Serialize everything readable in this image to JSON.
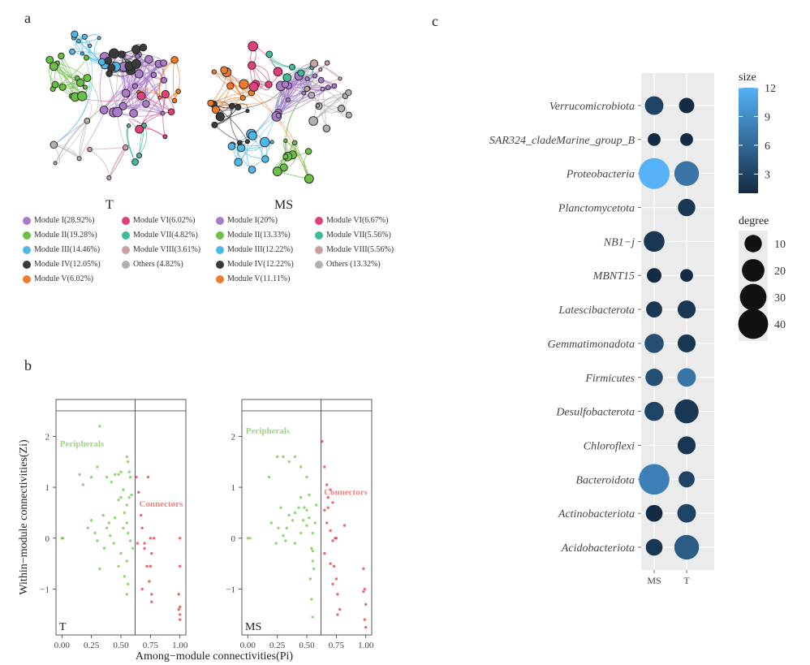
{
  "panels": {
    "a": "a",
    "b": "b",
    "c": "c"
  },
  "network_T": {
    "title": "T",
    "legend": [
      {
        "label": "Module I(28.92%)",
        "color": "#a97bc9"
      },
      {
        "label": "Module II(19.28%)",
        "color": "#6abf45"
      },
      {
        "label": "Module III(14.46%)",
        "color": "#4db8e8"
      },
      {
        "label": "Module IV(12.05%)",
        "color": "#3a3a3a"
      },
      {
        "label": "Module V(6.02%)",
        "color": "#ee7a2a"
      },
      {
        "label": "Module VI(6.02%)",
        "color": "#e0407a"
      },
      {
        "label": "Module VII(4.82%)",
        "color": "#3dbb9a"
      },
      {
        "label": "Module VIII(3.61%)",
        "color": "#c9a0a0"
      },
      {
        "label": "Others (4.82%)",
        "color": "#b0b0b0"
      }
    ]
  },
  "network_MS": {
    "title": "MS",
    "legend": [
      {
        "label": "Module I(20%)",
        "color": "#a97bc9"
      },
      {
        "label": "Module II(13.33%)",
        "color": "#6abf45"
      },
      {
        "label": "Module III(12.22%)",
        "color": "#4db8e8"
      },
      {
        "label": "Module IV(12.22%)",
        "color": "#3a3a3a"
      },
      {
        "label": "Module V(11.11%)",
        "color": "#ee7a2a"
      },
      {
        "label": "Module VI(6.67%)",
        "color": "#e0407a"
      },
      {
        "label": "Module VII(5.56%)",
        "color": "#3dbb9a"
      },
      {
        "label": "Module VIII(5.56%)",
        "color": "#c9a0a0"
      },
      {
        "label": "Others (13.32%)",
        "color": "#b0b0b0"
      }
    ]
  },
  "chart_data": [
    {
      "type": "scatter",
      "panel_tag": "T",
      "xlabel": "Among−module connectivities(Pi)",
      "ylabel": "Within−module connectivities(Zi)",
      "xlim": [
        -0.05,
        1.05
      ],
      "ylim": [
        -1.9,
        2.5
      ],
      "xticks": [
        0,
        0.25,
        0.5,
        0.75,
        1
      ],
      "xtick_labels": [
        "0.00",
        "0.25",
        "0.50",
        "0.75",
        "1.00"
      ],
      "yticks": [
        -1,
        0,
        1,
        2
      ],
      "ytick_labels": [
        "−1",
        "0",
        "1",
        "2"
      ],
      "threshold_pi": 0.62,
      "region_labels": [
        {
          "text": "Peripherals",
          "x": 0.17,
          "y": 1.8,
          "color": "#9ed67e"
        },
        {
          "text": "Connectors",
          "x": 0.84,
          "y": 0.62,
          "color": "#f08080"
        }
      ],
      "peripherals": [
        [
          0,
          0
        ],
        [
          0.01,
          0
        ],
        [
          0.15,
          1.25
        ],
        [
          0.18,
          1.05
        ],
        [
          0.25,
          1.2
        ],
        [
          0.32,
          2.2
        ],
        [
          0.3,
          1.4
        ],
        [
          0.38,
          1.2
        ],
        [
          0.42,
          1.1
        ],
        [
          0.45,
          1.25
        ],
        [
          0.48,
          1.25
        ],
        [
          0.5,
          1.3
        ],
        [
          0.55,
          1.6
        ],
        [
          0.56,
          1.5
        ],
        [
          0.52,
          0.95
        ],
        [
          0.5,
          0.8
        ],
        [
          0.48,
          0.75
        ],
        [
          0.45,
          0.4
        ],
        [
          0.4,
          0.3
        ],
        [
          0.38,
          0.2
        ],
        [
          0.35,
          0.45
        ],
        [
          0.28,
          0.1
        ],
        [
          0.22,
          0.2
        ],
        [
          0.3,
          -0.05
        ],
        [
          0.36,
          -0.2
        ],
        [
          0.41,
          0.05
        ],
        [
          0.44,
          -0.1
        ],
        [
          0.5,
          -0.3
        ],
        [
          0.55,
          -0.45
        ],
        [
          0.56,
          -0.9
        ],
        [
          0.55,
          -1.1
        ],
        [
          0.53,
          -0.75
        ],
        [
          0.48,
          -0.55
        ],
        [
          0.32,
          -0.6
        ],
        [
          0.25,
          0.35
        ],
        [
          0.55,
          0.65
        ],
        [
          0.57,
          0.8
        ],
        [
          0.58,
          1.2
        ],
        [
          0.6,
          -0.2
        ],
        [
          0.58,
          -0.05
        ],
        [
          0.56,
          0.1
        ],
        [
          0.52,
          0.2
        ],
        [
          0.53,
          0.5
        ],
        [
          0.55,
          0.3
        ],
        [
          0.57,
          1.3
        ],
        [
          0.59,
          0.85
        ]
      ],
      "connectors": [
        [
          0.63,
          1.2
        ],
        [
          0.64,
          -0.1
        ],
        [
          0.65,
          0.9
        ],
        [
          0.67,
          0.45
        ],
        [
          0.68,
          0.2
        ],
        [
          0.7,
          -0.2
        ],
        [
          0.72,
          -0.55
        ],
        [
          0.74,
          -0.85
        ],
        [
          0.76,
          -1.1
        ],
        [
          0.76,
          -1.25
        ],
        [
          0.73,
          1.2
        ],
        [
          0.75,
          0
        ],
        [
          0.76,
          -0.3
        ],
        [
          0.75,
          -0.55
        ],
        [
          0.78,
          0
        ],
        [
          0.68,
          -1
        ],
        [
          0.7,
          -0.1
        ],
        [
          1,
          0
        ],
        [
          1,
          -0.55
        ],
        [
          1,
          -1.35
        ],
        [
          0.99,
          -1.4
        ],
        [
          1,
          -1.5
        ],
        [
          1,
          -1.6
        ],
        [
          0.99,
          -1.1
        ]
      ]
    },
    {
      "type": "scatter",
      "panel_tag": "MS",
      "xlabel": "",
      "ylabel": "",
      "xlim": [
        -0.05,
        1.05
      ],
      "ylim": [
        -1.9,
        2.5
      ],
      "xticks": [
        0,
        0.25,
        0.5,
        0.75,
        1
      ],
      "xtick_labels": [
        "0.00",
        "0.25",
        "0.50",
        "0.75",
        "1.00"
      ],
      "yticks": [
        -1,
        0,
        1,
        2
      ],
      "ytick_labels": [
        "−1",
        "0",
        "1",
        "2"
      ],
      "threshold_pi": 0.62,
      "region_labels": [
        {
          "text": "Peripherals",
          "x": 0.17,
          "y": 2.05,
          "color": "#9ed67e"
        },
        {
          "text": "Connectors",
          "x": 0.83,
          "y": 0.85,
          "color": "#f08080"
        }
      ],
      "peripherals": [
        [
          0,
          0
        ],
        [
          0.02,
          0
        ],
        [
          0.18,
          1.2
        ],
        [
          0.25,
          1.6
        ],
        [
          0.3,
          1.6
        ],
        [
          0.35,
          1.5
        ],
        [
          0.4,
          1.6
        ],
        [
          0.45,
          1.4
        ],
        [
          0.5,
          1.2
        ],
        [
          0.52,
          0.85
        ],
        [
          0.48,
          0.6
        ],
        [
          0.45,
          0.8
        ],
        [
          0.4,
          0.5
        ],
        [
          0.38,
          0.35
        ],
        [
          0.33,
          0.2
        ],
        [
          0.3,
          0.05
        ],
        [
          0.28,
          0.6
        ],
        [
          0.26,
          0.2
        ],
        [
          0.2,
          0.3
        ],
        [
          0.24,
          -0.1
        ],
        [
          0.32,
          -0.05
        ],
        [
          0.4,
          -0.1
        ],
        [
          0.45,
          0.1
        ],
        [
          0.5,
          0.25
        ],
        [
          0.52,
          0.4
        ],
        [
          0.54,
          -0.2
        ],
        [
          0.55,
          -0.25
        ],
        [
          0.55,
          -0.45
        ],
        [
          0.53,
          -0.8
        ],
        [
          0.54,
          -1.2
        ],
        [
          0.55,
          -1.55
        ],
        [
          0.57,
          0.3
        ],
        [
          0.58,
          0.65
        ],
        [
          0.5,
          0.55
        ],
        [
          0.55,
          0.1
        ],
        [
          0.35,
          0.45
        ],
        [
          0.43,
          0.6
        ],
        [
          0.47,
          0.35
        ],
        [
          0.56,
          -0.6
        ]
      ],
      "connectors": [
        [
          0.63,
          1.9
        ],
        [
          0.65,
          1.4
        ],
        [
          0.67,
          1.05
        ],
        [
          0.68,
          0.8
        ],
        [
          0.65,
          0.55
        ],
        [
          0.67,
          0.3
        ],
        [
          0.7,
          0.15
        ],
        [
          0.72,
          -0.05
        ],
        [
          0.74,
          0
        ],
        [
          0.65,
          -0.3
        ],
        [
          0.7,
          -0.5
        ],
        [
          0.73,
          -0.55
        ],
        [
          0.75,
          -0.8
        ],
        [
          0.76,
          -1.1
        ],
        [
          0.78,
          -1.4
        ],
        [
          0.76,
          -1.5
        ],
        [
          0.72,
          0.7
        ],
        [
          0.75,
          0
        ],
        [
          0.82,
          0.25
        ],
        [
          0.72,
          -0.9
        ],
        [
          0.68,
          0.6
        ],
        [
          0.98,
          -0.6
        ],
        [
          0.99,
          -1
        ],
        [
          1,
          -1.3
        ],
        [
          0.99,
          -1.6
        ],
        [
          1,
          -1.75
        ],
        [
          0.98,
          -1.05
        ],
        [
          0.7,
          0.95
        ]
      ]
    },
    {
      "type": "bubble",
      "panel_tag": "c",
      "categories": [
        "Verrucomicrobiota",
        "SAR324_cladeMarine_group_B",
        "Proteobacteria",
        "Planctomycetota",
        "NB1−j",
        "MBNT15",
        "Latescibacterota",
        "Gemmatimonadota",
        "Firmicutes",
        "Desulfobacterota",
        "Chloroflexi",
        "Bacteroidota",
        "Actinobacteriota",
        "Acidobacteriota"
      ],
      "x_categories": [
        "MS",
        "T"
      ],
      "series": [
        {
          "name": "MS",
          "size": [
            3,
            1,
            12,
            null,
            2,
            1,
            2,
            4,
            4,
            3,
            null,
            8,
            1,
            2
          ],
          "degree": [
            12,
            4,
            43,
            null,
            16,
            6,
            8,
            13,
            10,
            13,
            null,
            42,
            9,
            9
          ]
        },
        {
          "name": "T",
          "size": [
            1,
            1,
            7,
            2,
            null,
            1,
            2,
            2,
            7,
            2,
            2,
            3,
            3,
            5
          ],
          "degree": [
            7,
            4,
            25,
            10,
            null,
            4,
            11,
            11,
            12,
            23,
            11,
            8,
            12,
            25
          ]
        }
      ],
      "size_legend": {
        "title": "size",
        "min": 1,
        "max": 12,
        "ticks": [
          3,
          6,
          9,
          12
        ],
        "tick_labels": [
          "3",
          "6",
          "9",
          "12"
        ],
        "colors": [
          "#132b43",
          "#56b1f7"
        ]
      },
      "degree_legend": {
        "title": "degree",
        "values": [
          10,
          20,
          30,
          40
        ],
        "labels": [
          "10",
          "20",
          "30",
          "40"
        ]
      }
    }
  ]
}
